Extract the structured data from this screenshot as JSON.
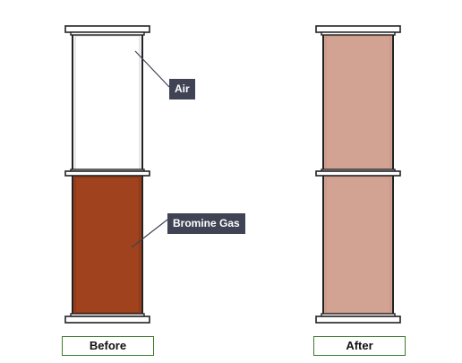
{
  "diagram": {
    "labels": {
      "air": "Air",
      "bromine": "Bromine Gas"
    },
    "captions": {
      "before": "Before",
      "after": "After"
    },
    "colors": {
      "bromine": "#a0421d",
      "mixed": "#d2a293",
      "air": "#ffffff",
      "plate": "#ffffff",
      "outline": "#222222",
      "label_bg": "#3f4354",
      "caption_border": "#3f7a2e"
    }
  }
}
